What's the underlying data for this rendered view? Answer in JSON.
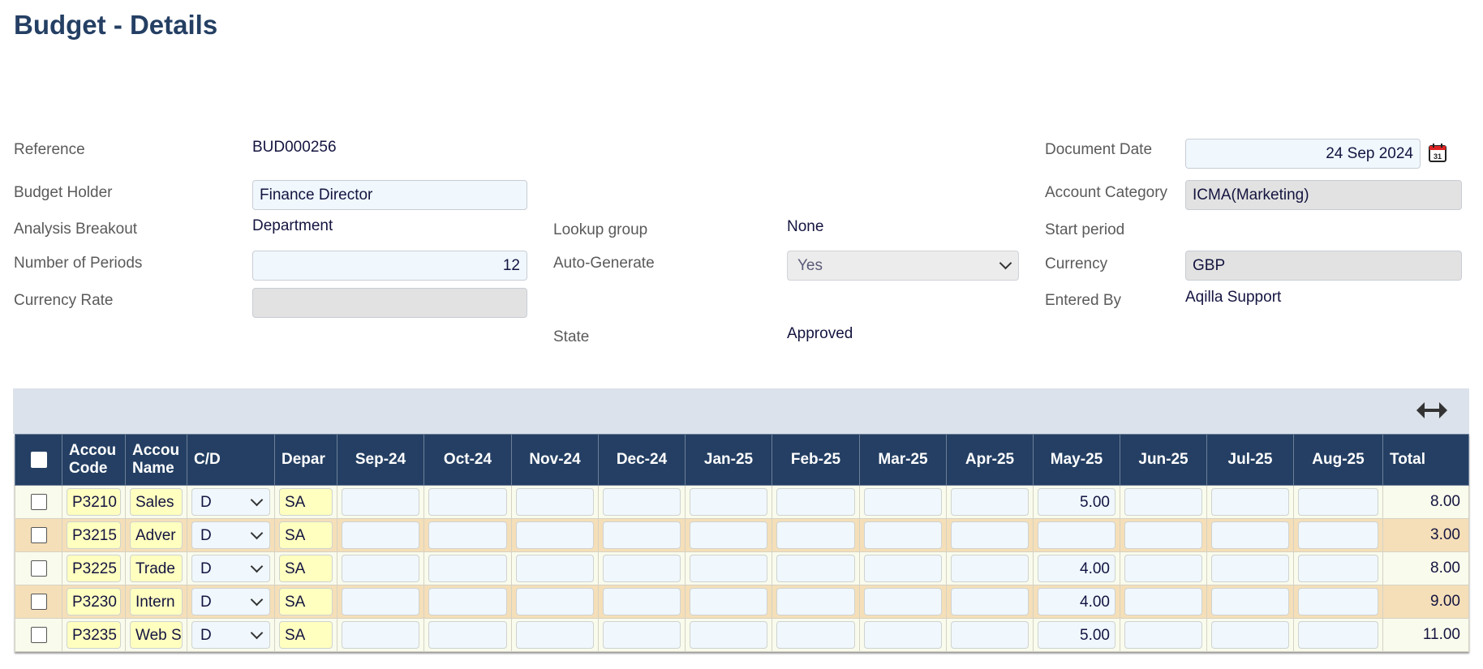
{
  "page": {
    "title": "Budget - Details"
  },
  "form": {
    "reference": {
      "label": "Reference",
      "value": "BUD000256"
    },
    "budget_holder": {
      "label": "Budget Holder",
      "value": "Finance Director"
    },
    "analysis_breakout": {
      "label": "Analysis Breakout",
      "value": "Department"
    },
    "number_of_periods": {
      "label": "Number of Periods",
      "value": "12"
    },
    "currency_rate": {
      "label": "Currency Rate",
      "value": ""
    },
    "lookup_group": {
      "label": "Lookup group",
      "value": "None"
    },
    "auto_generate": {
      "label": "Auto-Generate",
      "value": "Yes"
    },
    "state": {
      "label": "State",
      "value": "Approved"
    },
    "document_date": {
      "label": "Document Date",
      "value": "24 Sep 2024",
      "icon": "calendar-icon"
    },
    "account_category": {
      "label": "Account Category",
      "value": "ICMA(Marketing)"
    },
    "start_period": {
      "label": "Start period",
      "value": ""
    },
    "currency": {
      "label": "Currency",
      "value": "GBP"
    },
    "entered_by": {
      "label": "Entered By",
      "value": "Aqilla Support"
    }
  },
  "toolbar": {
    "expand_icon": "horizontal-resize-icon"
  },
  "table": {
    "headers": [
      "Accou Code",
      "Accou Name",
      "C/D",
      "Depar",
      "Sep-24",
      "Oct-24",
      "Nov-24",
      "Dec-24",
      "Jan-25",
      "Feb-25",
      "Mar-25",
      "Apr-25",
      "May-25",
      "Jun-25",
      "Jul-25",
      "Aug-25",
      "Total"
    ],
    "rows": [
      {
        "code": "P3210",
        "name": "Sales",
        "cd": "D",
        "dept": "SA",
        "months": [
          "",
          "",
          "",
          "",
          "",
          "",
          "",
          "",
          "5.00",
          "",
          "",
          ""
        ],
        "total": "8.00"
      },
      {
        "code": "P3215",
        "name": "Adver",
        "cd": "D",
        "dept": "SA",
        "months": [
          "",
          "",
          "",
          "",
          "",
          "",
          "",
          "",
          "",
          "",
          "",
          ""
        ],
        "total": "3.00"
      },
      {
        "code": "P3225",
        "name": "Trade",
        "cd": "D",
        "dept": "SA",
        "months": [
          "",
          "",
          "",
          "",
          "",
          "",
          "",
          "",
          "4.00",
          "",
          "",
          ""
        ],
        "total": "8.00"
      },
      {
        "code": "P3230",
        "name": "Intern",
        "cd": "D",
        "dept": "SA",
        "months": [
          "",
          "",
          "",
          "",
          "",
          "",
          "",
          "",
          "4.00",
          "",
          "",
          ""
        ],
        "total": "9.00"
      },
      {
        "code": "P3235",
        "name": "Web S",
        "cd": "D",
        "dept": "SA",
        "months": [
          "",
          "",
          "",
          "",
          "",
          "",
          "",
          "",
          "5.00",
          "",
          "",
          ""
        ],
        "total": "11.00"
      }
    ]
  },
  "colors": {
    "header_bg": "#243f63",
    "row_odd": "#f9fbec",
    "row_even": "#f5dfb8",
    "input_bg": "#f0f7fd",
    "code_bg": "#ffffc0"
  }
}
